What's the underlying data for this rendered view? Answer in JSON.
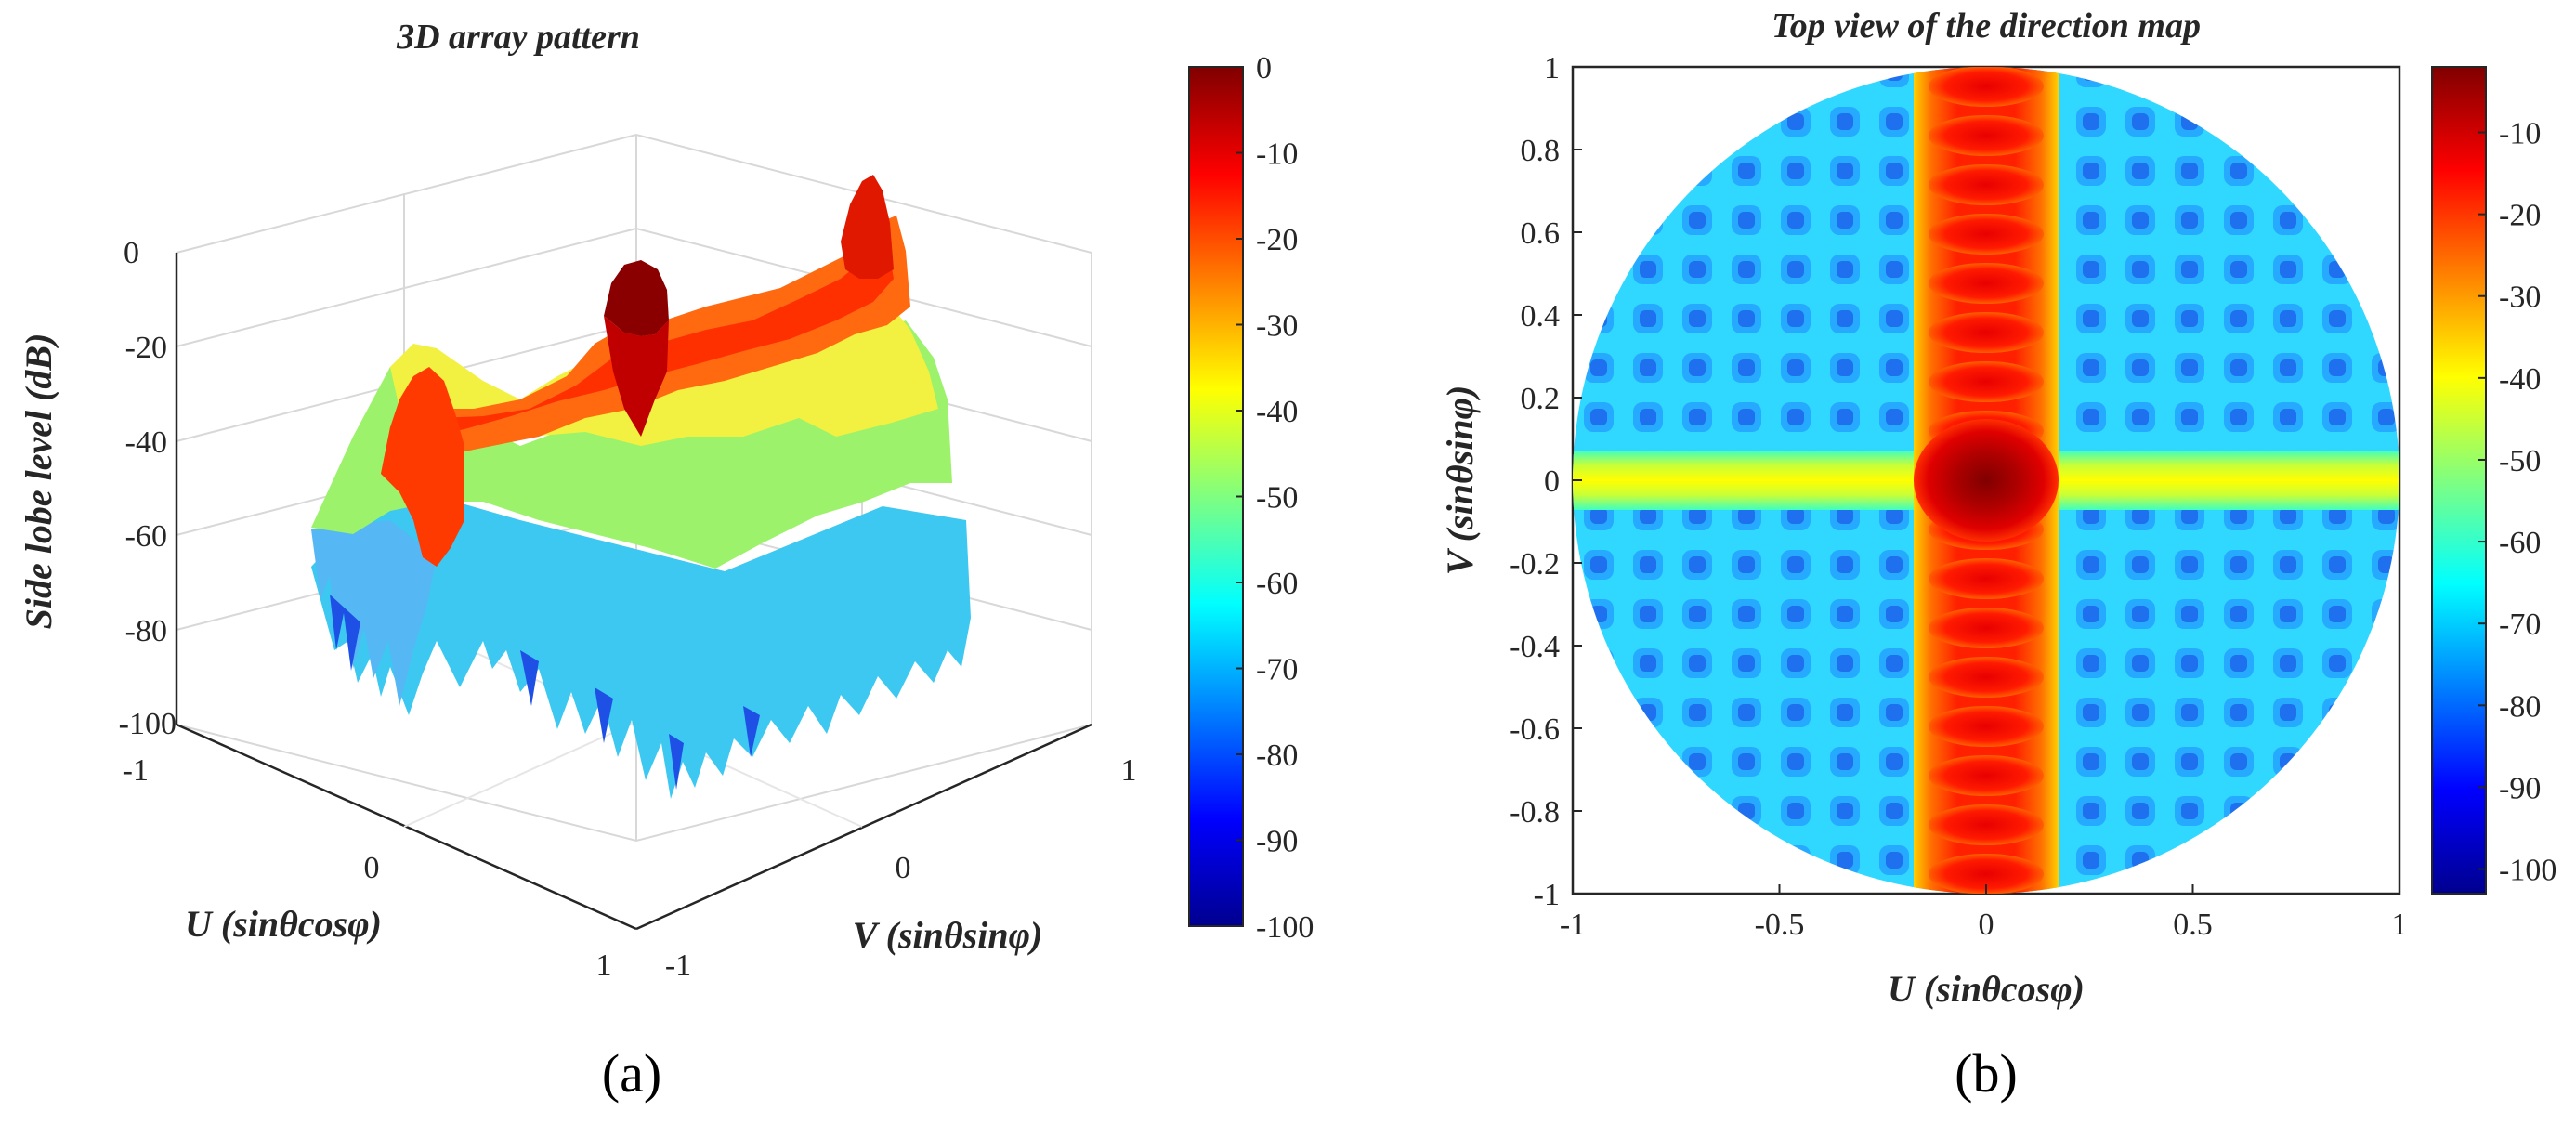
{
  "figure": {
    "panel_a_label": "(a)",
    "panel_b_label": "(b)"
  },
  "chart_data": [
    {
      "type": "surface3d",
      "title": "3D array pattern",
      "xlabel": "U (sinθcosφ)",
      "ylabel": "V (sinθsinφ)",
      "zlabel": "Side lobe level (dB)",
      "x_ticks": [
        "-1",
        "0",
        "1"
      ],
      "y_ticks": [
        "-1",
        "0",
        "1"
      ],
      "z_ticks": [
        "0",
        "-20",
        "-40",
        "-60",
        "-80",
        "-100"
      ],
      "xlim": [
        -1,
        1
      ],
      "ylim": [
        -1,
        1
      ],
      "zlim": [
        -100,
        0
      ],
      "main_beam_peak_db": 0,
      "grating_lobe_cuts": [
        "U = 0",
        "V = 0"
      ],
      "colorbar": {
        "ticks": [
          "0",
          "-10",
          "-20",
          "-30",
          "-40",
          "-50",
          "-60",
          "-70",
          "-80",
          "-90",
          "-100"
        ],
        "range": [
          -100,
          0
        ],
        "colormap": "jet"
      }
    },
    {
      "type": "heatmap",
      "title": "Top view of the direction map",
      "xlabel": "U (sinθcosφ)",
      "ylabel": "V (sinθsinφ)",
      "x_ticks": [
        "-1",
        "-0.5",
        "0",
        "0.5",
        "1"
      ],
      "y_ticks": [
        "1",
        "0.8",
        "0.6",
        "0.4",
        "0.2",
        "0",
        "-0.2",
        "-0.4",
        "-0.6",
        "-0.8",
        "-1"
      ],
      "xlim": [
        -1,
        1
      ],
      "ylim": [
        -1,
        1
      ],
      "visible_region": "U^2 + V^2 <= 1",
      "main_beam_center": [
        0,
        0
      ],
      "main_beam_db": 0,
      "vertical_lobe_train_db": -12,
      "horizontal_lobe_train_db": -42,
      "sidelobe_floor_db": -62,
      "colorbar": {
        "ticks": [
          "-10",
          "-20",
          "-30",
          "-40",
          "-50",
          "-60",
          "-70",
          "-80",
          "-90",
          "-100"
        ],
        "range": [
          -103,
          -2
        ],
        "colormap": "jet"
      }
    }
  ]
}
